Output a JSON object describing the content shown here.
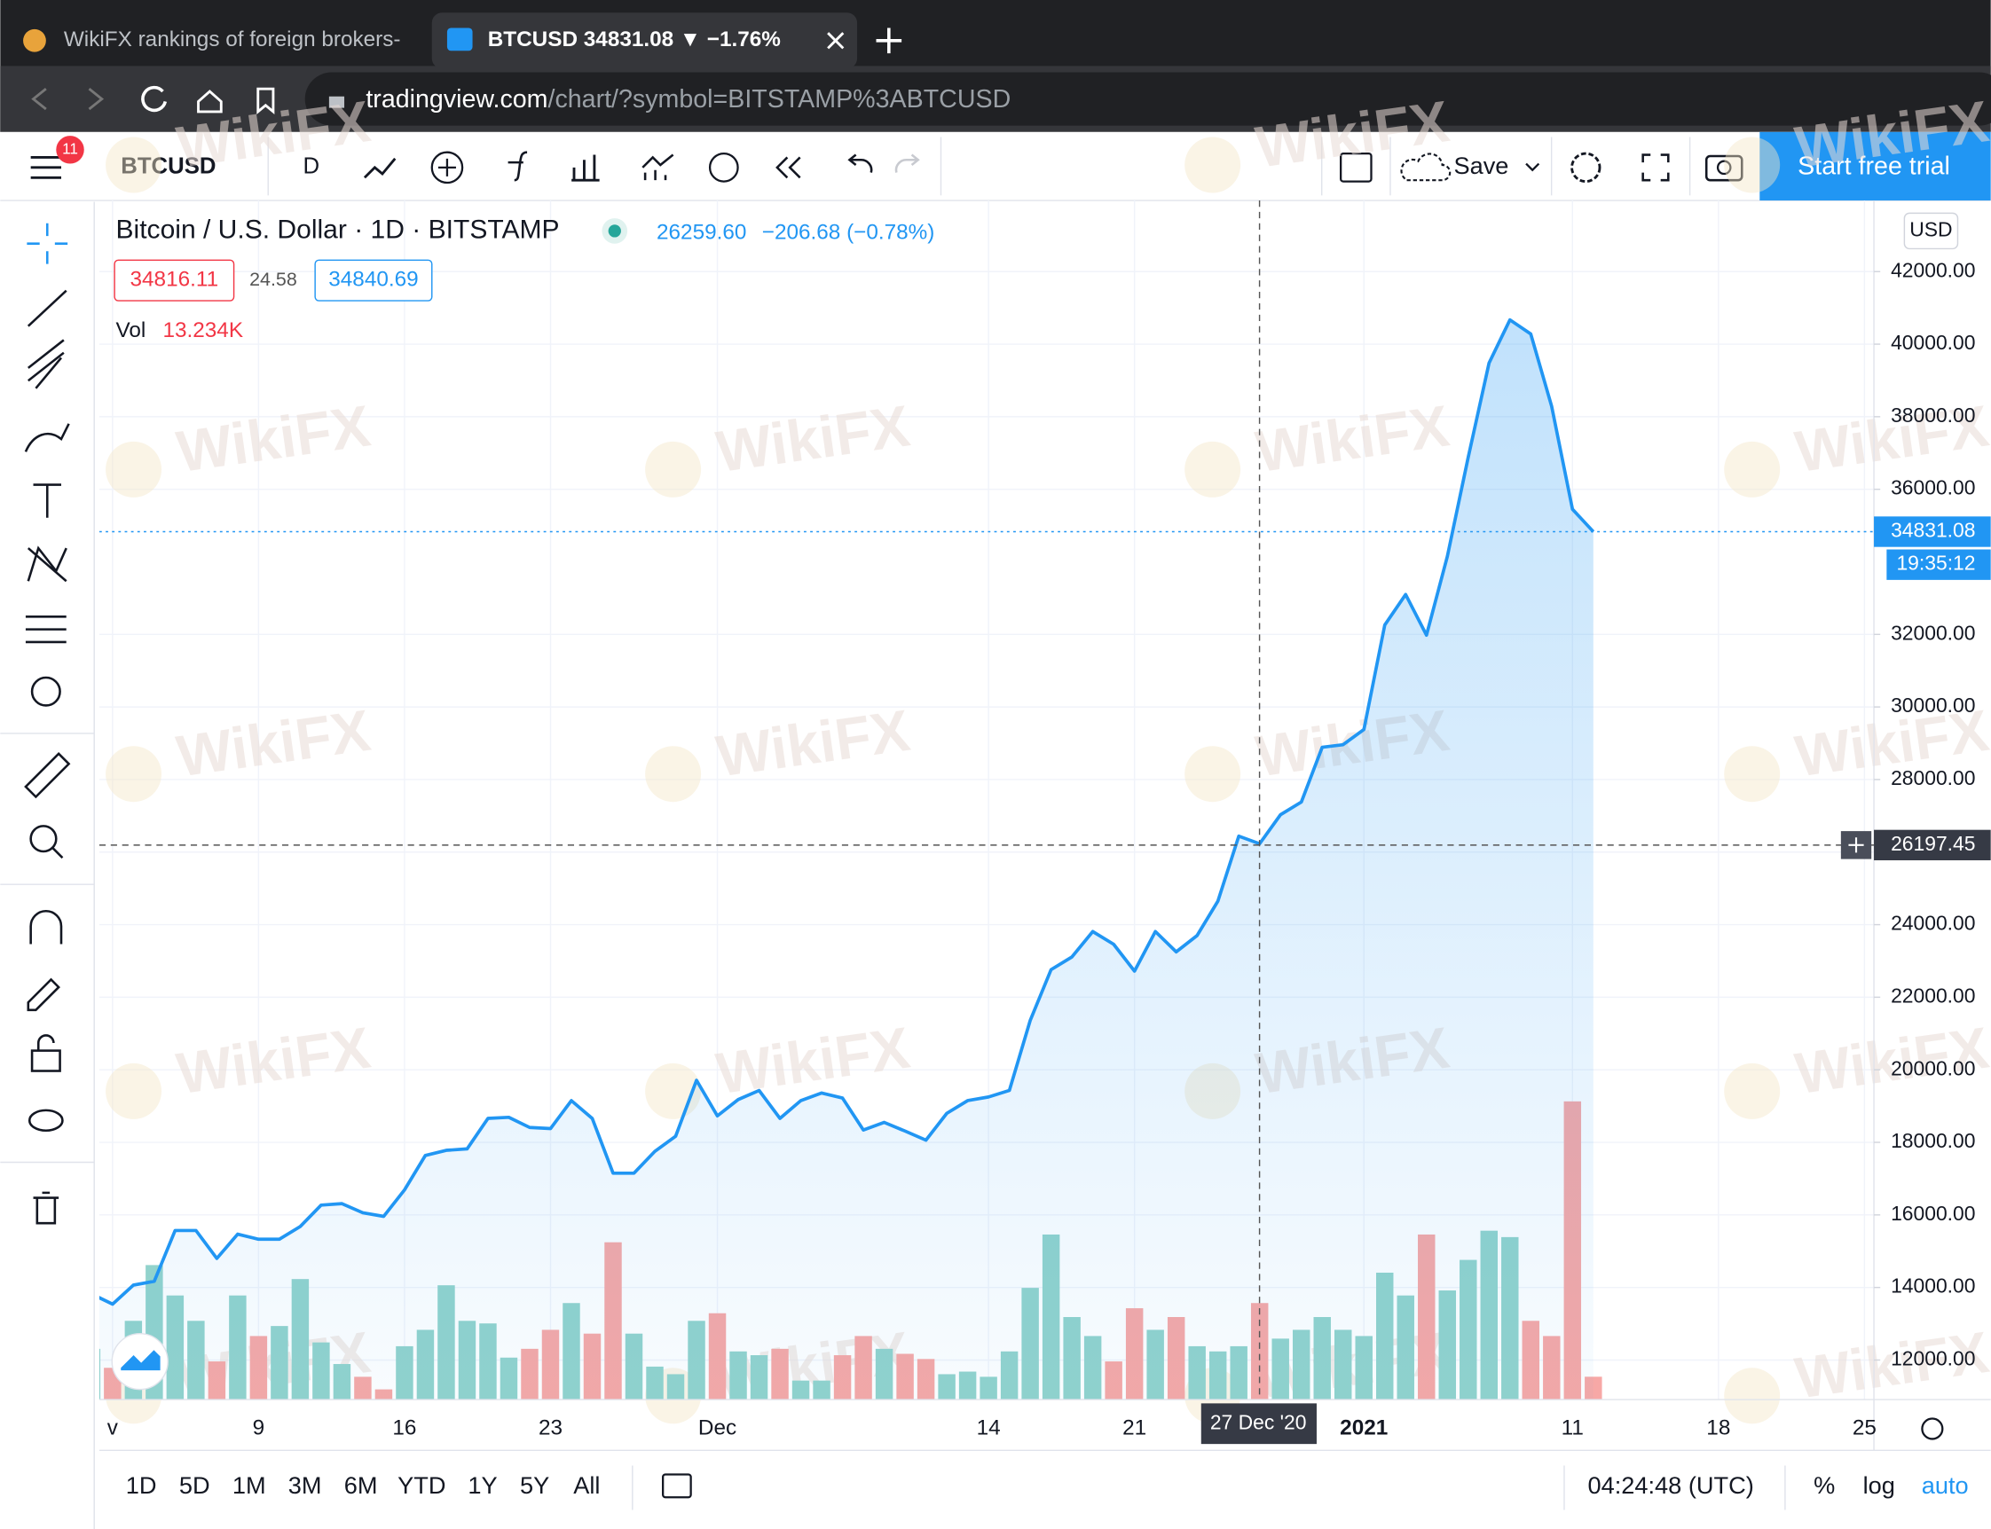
{
  "browser": {
    "tabs": [
      "WikiFX rankings of foreign brokers-",
      "BTCUSD 34831.08 ▼ −1.76%"
    ],
    "url_domain": "tradingview.com",
    "url_path": "/chart/?symbol=BITSTAMP%3ABTCUSD"
  },
  "toolbar": {
    "notifications": "11",
    "symbol": "BTCUSD",
    "interval": "D",
    "save": "Save",
    "trial": "Start free trial"
  },
  "legend": {
    "title": "Bitcoin / U.S. Dollar · 1D · BITSTAMP",
    "price": "26259.60",
    "change": "−206.68 (−0.78%)",
    "bid": "34816.11",
    "spread": "24.58",
    "ask": "34840.69",
    "vol_name": "Vol",
    "vol_value": "13.234K"
  },
  "price_scale": {
    "currency": "USD",
    "last_price": "34831.08",
    "countdown": "19:35:12",
    "crosshair_price": "26197.45",
    "crosshair_date": "27 Dec '20"
  },
  "watermark": "WikiFX",
  "chart_data": {
    "type": "area",
    "categories": [
      null,
      "v",
      null,
      null,
      null,
      null,
      null,
      null,
      "9",
      null,
      null,
      null,
      null,
      null,
      null,
      "16",
      null,
      null,
      null,
      null,
      null,
      null,
      "23",
      null,
      null,
      null,
      null,
      null,
      null,
      null,
      "Dec",
      null,
      null,
      null,
      null,
      null,
      null,
      null,
      null,
      null,
      null,
      null,
      null,
      "14",
      null,
      null,
      null,
      null,
      null,
      null,
      "21",
      null,
      null,
      null,
      null,
      null,
      null,
      null,
      null,
      null,
      null,
      "2021",
      null,
      null,
      null,
      null,
      null,
      null,
      null,
      null,
      null,
      "11",
      null,
      null,
      null,
      null,
      null,
      null,
      "18",
      null,
      null,
      null,
      null,
      null,
      null,
      "25"
    ],
    "series": [
      {
        "name": "BTCUSD",
        "color": "#2196f3",
        "values": [
          13820,
          13540,
          14065,
          14170,
          15570,
          15570,
          14800,
          15470,
          15330,
          15330,
          15680,
          16270,
          16310,
          16060,
          15960,
          16690,
          17640,
          17780,
          17820,
          18660,
          18690,
          18410,
          18380,
          19150,
          18660,
          17150,
          17150,
          17750,
          18170,
          19710,
          18730,
          19180,
          19430,
          18660,
          19150,
          19360,
          19220,
          18340,
          18550,
          18310,
          18060,
          18800,
          19150,
          19250,
          19430,
          21360,
          22760,
          23110,
          23810,
          23460,
          22720,
          23810,
          23250,
          23700,
          24650,
          26440,
          26230,
          27030,
          27380,
          28890,
          28960,
          29380,
          32260,
          33100,
          31980,
          34150,
          36880,
          39480,
          40670,
          40280,
          38290,
          35450,
          34831.08,
          null,
          null,
          null,
          null,
          null,
          null,
          null,
          null,
          null,
          null,
          null,
          null,
          null
        ]
      },
      {
        "name": "Vol",
        "values": [
          29.4,
          18.4,
          45.6,
          77.9,
          60.3,
          45.6,
          22.1,
          60.3,
          36.8,
          42.6,
          69.8,
          33.1,
          20.6,
          13.2,
          5.9,
          30.9,
          40.4,
          66.2,
          45.6,
          44.1,
          24.3,
          29.4,
          40.4,
          55.9,
          38.2,
          91.1,
          38.2,
          19.1,
          14.7,
          45.6,
          50.0,
          27.9,
          25.7,
          29.4,
          11.0,
          11.0,
          25.7,
          36.8,
          29.4,
          26.5,
          23.5,
          14.7,
          16.2,
          13.2,
          27.9,
          64.7,
          95.6,
          47.8,
          36.8,
          22.1,
          52.9,
          40.4,
          47.8,
          30.9,
          27.9,
          30.9,
          55.9,
          35.3,
          40.4,
          47.8,
          40.4,
          36.8,
          73.5,
          60.3,
          95.6,
          63.2,
          80.9,
          97.8,
          94.1,
          45.6,
          36.8,
          172.7,
          13.234,
          null,
          null,
          null,
          null,
          null,
          null,
          null,
          null,
          null,
          null,
          null,
          null,
          null
        ]
      }
    ],
    "up_color": "#92d3cc",
    "down_color": "#f7a8a6",
    "ylim": [
      10910,
      43960
    ],
    "yticks": [
      {
        "value": 12000,
        "label": "12000.00"
      },
      {
        "value": 14000,
        "label": "14000.00"
      },
      {
        "value": 16000,
        "label": "16000.00"
      },
      {
        "value": 18000,
        "label": "18000.00"
      },
      {
        "value": 20000,
        "label": "20000.00"
      },
      {
        "value": 22000,
        "label": "22000.00"
      },
      {
        "value": 24000,
        "label": "24000.00"
      },
      {
        "value": 26000,
        "label": "26000.00"
      },
      {
        "value": 28000,
        "label": "28000.00"
      },
      {
        "value": 30000,
        "label": "30000.00"
      },
      {
        "value": 32000,
        "label": "32000.00"
      },
      {
        "value": 36000,
        "label": "36000.00"
      },
      {
        "value": 38000,
        "label": "38000.00"
      },
      {
        "value": 40000,
        "label": "40000.00"
      },
      {
        "value": 42000,
        "label": "42000.00"
      }
    ],
    "grid": true
  },
  "bottom_bar": {
    "ranges": [
      "1D",
      "5D",
      "1M",
      "3M",
      "6M",
      "YTD",
      "1Y",
      "5Y",
      "All"
    ],
    "clock": "04:24:48 (UTC)",
    "percent": "%",
    "log": "log",
    "auto": "auto"
  }
}
